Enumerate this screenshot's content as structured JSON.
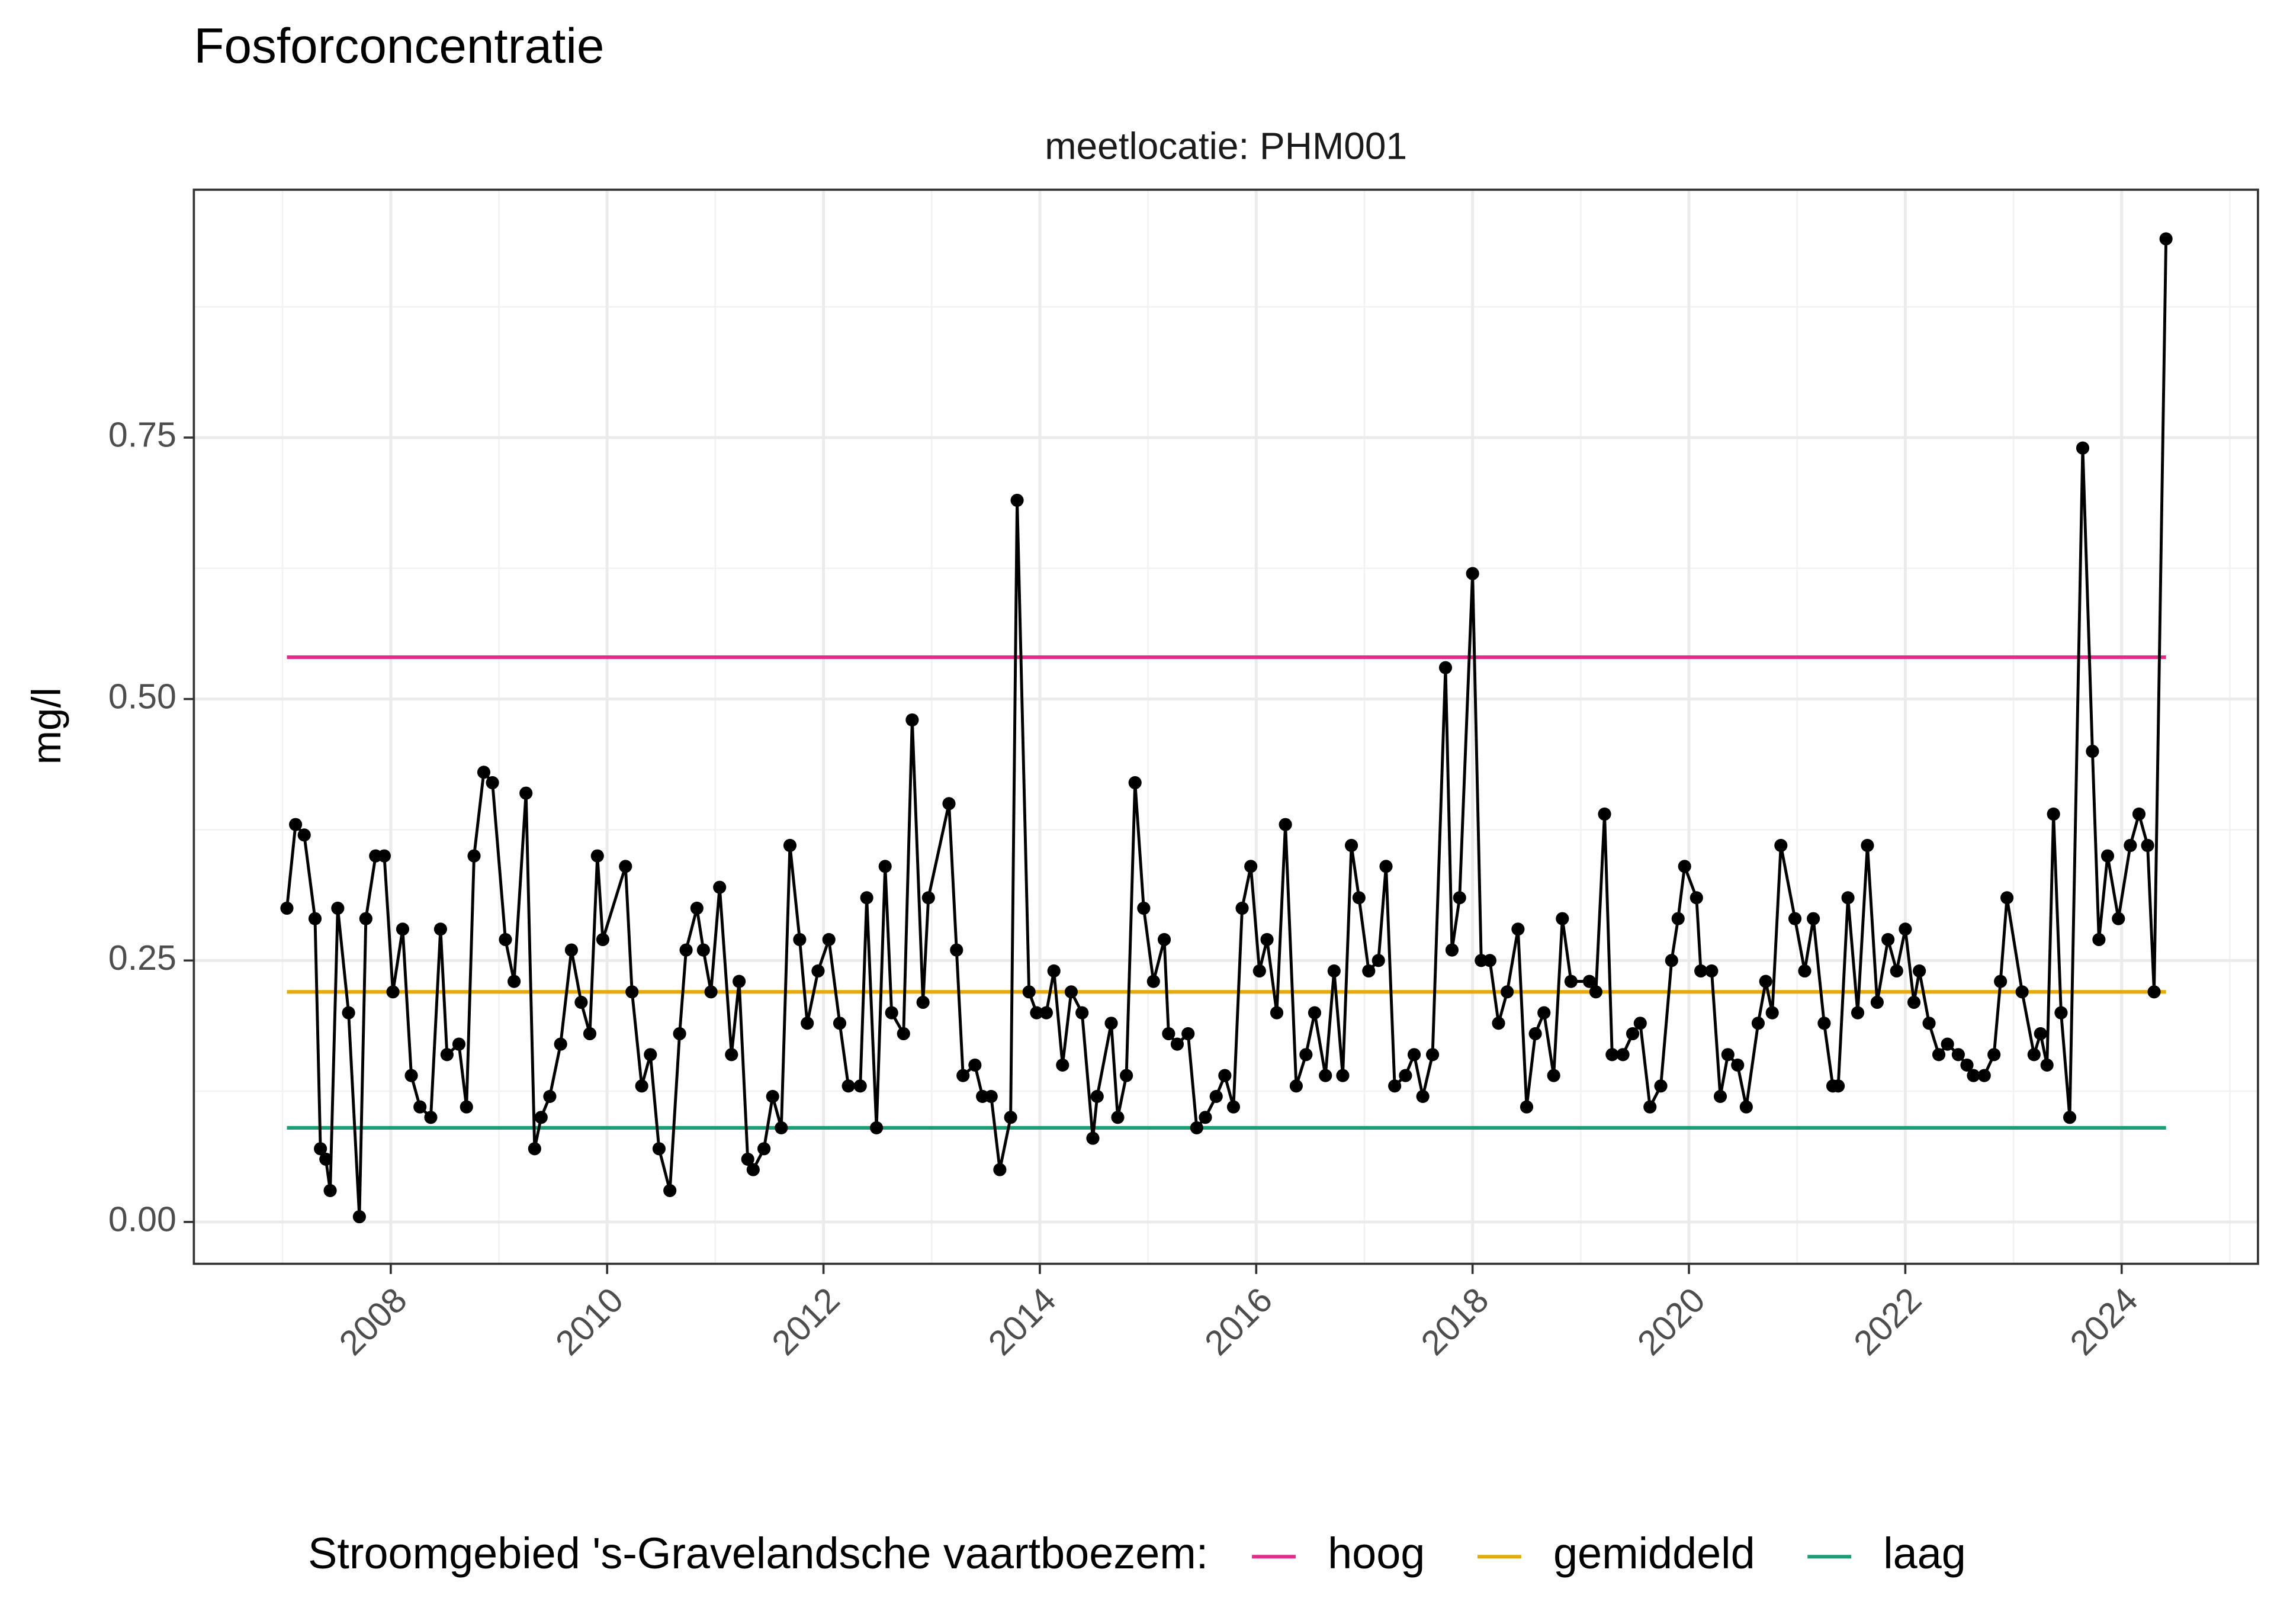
{
  "chart_data": {
    "type": "line",
    "title": "Fosforconcentratie",
    "subtitle": "meetlocatie: PHM001",
    "ylabel": "mg/l",
    "color": "#000000",
    "x": [
      2007.04,
      2007.12,
      2007.2,
      2007.3,
      2007.35,
      2007.4,
      2007.44,
      2007.51,
      2007.61,
      2007.71,
      2007.77,
      2007.86,
      2007.94,
      2008.02,
      2008.11,
      2008.19,
      2008.27,
      2008.37,
      2008.46,
      2008.52,
      2008.63,
      2008.7,
      2008.77,
      2008.86,
      2008.94,
      2009.06,
      2009.14,
      2009.25,
      2009.33,
      2009.39,
      2009.47,
      2009.57,
      2009.67,
      2009.76,
      2009.84,
      2009.91,
      2009.96,
      2010.17,
      2010.23,
      2010.32,
      2010.4,
      2010.48,
      2010.58,
      2010.67,
      2010.73,
      2010.83,
      2010.89,
      2010.96,
      2011.04,
      2011.15,
      2011.22,
      2011.3,
      2011.35,
      2011.45,
      2011.53,
      2011.61,
      2011.69,
      2011.78,
      2011.85,
      2011.95,
      2012.05,
      2012.15,
      2012.23,
      2012.34,
      2012.4,
      2012.49,
      2012.57,
      2012.63,
      2012.74,
      2012.82,
      2012.92,
      2012.97,
      2013.16,
      2013.23,
      2013.29,
      2013.4,
      2013.47,
      2013.55,
      2013.63,
      2013.73,
      2013.79,
      2013.9,
      2013.97,
      2014.06,
      2014.13,
      2014.21,
      2014.29,
      2014.39,
      2014.49,
      2014.53,
      2014.66,
      2014.72,
      2014.8,
      2014.88,
      2014.96,
      2015.05,
      2015.15,
      2015.19,
      2015.27,
      2015.37,
      2015.45,
      2015.53,
      2015.63,
      2015.71,
      2015.79,
      2015.87,
      2015.95,
      2016.03,
      2016.1,
      2016.19,
      2016.27,
      2016.37,
      2016.46,
      2016.54,
      2016.64,
      2016.72,
      2016.8,
      2016.88,
      2016.95,
      2017.04,
      2017.13,
      2017.2,
      2017.28,
      2017.38,
      2017.46,
      2017.54,
      2017.63,
      2017.75,
      2017.81,
      2017.88,
      2018.0,
      2018.08,
      2018.16,
      2018.24,
      2018.32,
      2018.42,
      2018.5,
      2018.58,
      2018.66,
      2018.75,
      2018.83,
      2018.91,
      2019.08,
      2019.14,
      2019.22,
      2019.29,
      2019.39,
      2019.48,
      2019.55,
      2019.64,
      2019.74,
      2019.84,
      2019.9,
      2019.96,
      2020.07,
      2020.11,
      2020.21,
      2020.29,
      2020.36,
      2020.45,
      2020.53,
      2020.64,
      2020.71,
      2020.77,
      2020.85,
      2020.98,
      2021.07,
      2021.15,
      2021.25,
      2021.33,
      2021.38,
      2021.47,
      2021.56,
      2021.65,
      2021.74,
      2021.84,
      2021.92,
      2022.0,
      2022.08,
      2022.13,
      2022.22,
      2022.31,
      2022.39,
      2022.49,
      2022.57,
      2022.63,
      2022.73,
      2022.82,
      2022.88,
      2022.94,
      2023.08,
      2023.19,
      2023.25,
      2023.31,
      2023.37,
      2023.44,
      2023.52,
      2023.64,
      2023.73,
      2023.79,
      2023.87,
      2023.97,
      2024.08,
      2024.16,
      2024.24,
      2024.3,
      2024.41
    ],
    "values": [
      0.3,
      0.38,
      0.37,
      0.29,
      0.07,
      0.06,
      0.03,
      0.3,
      0.2,
      0.005,
      0.29,
      0.35,
      0.35,
      0.22,
      0.28,
      0.14,
      0.11,
      0.1,
      0.28,
      0.16,
      0.17,
      0.11,
      0.35,
      0.43,
      0.42,
      0.27,
      0.23,
      0.41,
      0.07,
      0.1,
      0.12,
      0.17,
      0.26,
      0.21,
      0.18,
      0.35,
      0.27,
      0.34,
      0.22,
      0.13,
      0.16,
      0.07,
      0.03,
      0.18,
      0.26,
      0.3,
      0.26,
      0.22,
      0.32,
      0.16,
      0.23,
      0.06,
      0.05,
      0.07,
      0.12,
      0.09,
      0.36,
      0.27,
      0.19,
      0.24,
      0.27,
      0.19,
      0.13,
      0.13,
      0.31,
      0.09,
      0.34,
      0.2,
      0.18,
      0.48,
      0.21,
      0.31,
      0.4,
      0.26,
      0.14,
      0.15,
      0.12,
      0.12,
      0.05,
      0.1,
      0.69,
      0.22,
      0.2,
      0.2,
      0.24,
      0.15,
      0.22,
      0.2,
      0.08,
      0.12,
      0.19,
      0.1,
      0.14,
      0.42,
      0.3,
      0.23,
      0.27,
      0.18,
      0.17,
      0.18,
      0.09,
      0.1,
      0.12,
      0.14,
      0.11,
      0.3,
      0.34,
      0.24,
      0.27,
      0.2,
      0.38,
      0.13,
      0.16,
      0.2,
      0.14,
      0.24,
      0.14,
      0.36,
      0.31,
      0.24,
      0.25,
      0.34,
      0.13,
      0.14,
      0.16,
      0.12,
      0.16,
      0.53,
      0.26,
      0.31,
      0.62,
      0.25,
      0.25,
      0.19,
      0.22,
      0.28,
      0.11,
      0.18,
      0.2,
      0.14,
      0.29,
      0.23,
      0.23,
      0.22,
      0.39,
      0.16,
      0.16,
      0.18,
      0.19,
      0.11,
      0.13,
      0.25,
      0.29,
      0.34,
      0.31,
      0.24,
      0.24,
      0.12,
      0.16,
      0.15,
      0.11,
      0.19,
      0.23,
      0.2,
      0.36,
      0.29,
      0.24,
      0.29,
      0.19,
      0.13,
      0.13,
      0.31,
      0.2,
      0.36,
      0.21,
      0.27,
      0.24,
      0.28,
      0.21,
      0.24,
      0.19,
      0.16,
      0.17,
      0.16,
      0.15,
      0.14,
      0.14,
      0.16,
      0.23,
      0.31,
      0.22,
      0.16,
      0.18,
      0.15,
      0.39,
      0.2,
      0.1,
      0.74,
      0.45,
      0.27,
      0.35,
      0.29,
      0.36,
      0.39,
      0.36,
      0.22,
      0.94
    ],
    "hlines": [
      {
        "name": "hoog",
        "color": "#e7298a",
        "value": 0.54
      },
      {
        "name": "gemiddeld",
        "color": "#e6ab02",
        "value": 0.22
      },
      {
        "name": "laag",
        "color": "#1b9e77",
        "value": 0.09
      }
    ],
    "legend_title": "Stroomgebied 's-Gravelandsche vaartboezem:",
    "legend_position": "bottom",
    "xlim": [
      2006.18,
      2025.26
    ],
    "xticks": [
      2008,
      2010,
      2012,
      2014,
      2016,
      2018,
      2020,
      2022,
      2024
    ],
    "ylim": [
      -0.04,
      0.987
    ],
    "yticks": [
      {
        "value": 0,
        "label": "0.00"
      },
      0.25,
      {
        "value": 0.5,
        "label": "0.50"
      },
      0.75
    ],
    "grid": true
  }
}
